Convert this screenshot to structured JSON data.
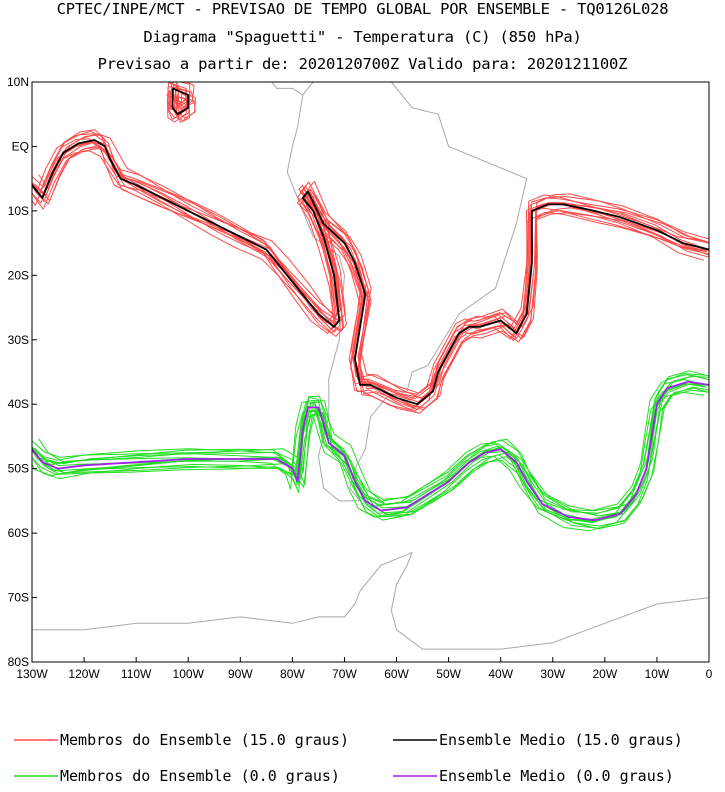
{
  "title_lines": [
    "CPTEC/INPE/MCT - PREVISAO DE TEMPO GLOBAL POR ENSEMBLE - TQ0126L028",
    "Diagrama \"Spaguetti\" - Temperatura (C) (850 hPa)",
    "Previsao a partir de: 2020120700Z  Valido para: 2020121100Z"
  ],
  "chart_data": {
    "type": "line",
    "title": "Diagrama \"Spaguetti\" - Temperatura (C) (850 hPa)",
    "subtitle": "Previsao a partir de: 2020120700Z  Valido para: 2020121100Z",
    "x_range": [
      -130,
      0
    ],
    "y_range": [
      -80,
      10
    ],
    "x_ticks": [
      {
        "v": -130,
        "label": "130W"
      },
      {
        "v": -120,
        "label": "120W"
      },
      {
        "v": -110,
        "label": "110W"
      },
      {
        "v": -100,
        "label": "100W"
      },
      {
        "v": -90,
        "label": "90W"
      },
      {
        "v": -80,
        "label": "80W"
      },
      {
        "v": -70,
        "label": "70W"
      },
      {
        "v": -60,
        "label": "60W"
      },
      {
        "v": -50,
        "label": "50W"
      },
      {
        "v": -40,
        "label": "40W"
      },
      {
        "v": -30,
        "label": "30W"
      },
      {
        "v": -20,
        "label": "20W"
      },
      {
        "v": -10,
        "label": "10W"
      },
      {
        "v": 0,
        "label": "0"
      }
    ],
    "y_ticks": [
      {
        "v": 10,
        "label": "10N"
      },
      {
        "v": 0,
        "label": "EQ"
      },
      {
        "v": -10,
        "label": "10S"
      },
      {
        "v": -20,
        "label": "20S"
      },
      {
        "v": -30,
        "label": "30S"
      },
      {
        "v": -40,
        "label": "40S"
      },
      {
        "v": -50,
        "label": "50S"
      },
      {
        "v": -60,
        "label": "60S"
      },
      {
        "v": -70,
        "label": "70S"
      },
      {
        "v": -80,
        "label": "80S"
      }
    ],
    "legend": [
      {
        "label": "Membros do Ensemble (15.0 graus)",
        "color": "#ff4a4a"
      },
      {
        "label": "Ensemble Medio (15.0 graus)",
        "color": "#000000"
      },
      {
        "label": "Membros do Ensemble (0.0 graus)",
        "color": "#22dd22"
      },
      {
        "label": "Ensemble Medio (0.0 graus)",
        "color": "#a020f0"
      }
    ],
    "members": 14,
    "series": [
      {
        "name": "Ensemble Medio (15.0 graus)",
        "color": "#000000",
        "segments": [
          [
            [
              -130,
              -6
            ],
            [
              -128,
              -8
            ],
            [
              -126,
              -4
            ],
            [
              -124,
              -1
            ],
            [
              -121,
              0.5
            ],
            [
              -118,
              1
            ],
            [
              -116,
              0
            ],
            [
              -115,
              -2
            ],
            [
              -113,
              -5
            ],
            [
              -110,
              -6
            ],
            [
              -105,
              -8
            ],
            [
              -100,
              -10
            ],
            [
              -95,
              -12
            ],
            [
              -90,
              -14
            ],
            [
              -85,
              -16
            ],
            [
              -82,
              -19
            ],
            [
              -78,
              -23
            ],
            [
              -75,
              -26
            ],
            [
              -72,
              -28
            ],
            [
              -71,
              -27
            ],
            [
              -72,
              -20
            ],
            [
              -74,
              -14
            ],
            [
              -76,
              -10
            ],
            [
              -78,
              -8
            ],
            [
              -77,
              -7
            ],
            [
              -74,
              -12
            ],
            [
              -70,
              -15
            ],
            [
              -68,
              -18
            ],
            [
              -66,
              -23
            ],
            [
              -67,
              -28
            ],
            [
              -68,
              -33
            ],
            [
              -67,
              -37
            ],
            [
              -65,
              -37
            ],
            [
              -60,
              -39
            ],
            [
              -56,
              -40
            ],
            [
              -53,
              -38
            ],
            [
              -52,
              -35
            ],
            [
              -50,
              -32
            ],
            [
              -48,
              -29
            ],
            [
              -46,
              -28
            ],
            [
              -44,
              -28
            ],
            [
              -40,
              -27
            ],
            [
              -37,
              -29
            ],
            [
              -35,
              -26
            ],
            [
              -34,
              -18
            ],
            [
              -34,
              -10
            ],
            [
              -31,
              -9
            ],
            [
              -28,
              -9
            ],
            [
              -22,
              -10
            ],
            [
              -17,
              -11
            ],
            [
              -10,
              -13
            ],
            [
              -5,
              -15
            ],
            [
              0,
              -16
            ]
          ],
          [
            [
              -103,
              9
            ],
            [
              -100,
              8
            ],
            [
              -100,
              6
            ],
            [
              -102,
              5
            ],
            [
              -103,
              6
            ],
            [
              -103,
              9
            ]
          ]
        ]
      },
      {
        "name": "Ensemble Medio (0.0 graus)",
        "color": "#a020f0",
        "segments": [
          [
            [
              -130,
              -47
            ],
            [
              -128,
              -49
            ],
            [
              -125,
              -50
            ],
            [
              -120,
              -49.5
            ],
            [
              -110,
              -49
            ],
            [
              -100,
              -48.5
            ],
            [
              -90,
              -48.5
            ],
            [
              -83,
              -48.5
            ],
            [
              -80,
              -50
            ],
            [
              -79,
              -52
            ],
            [
              -78,
              -44
            ],
            [
              -77,
              -40.5
            ],
            [
              -75,
              -40.5
            ],
            [
              -74,
              -43
            ],
            [
              -73,
              -46
            ],
            [
              -70,
              -48
            ],
            [
              -68,
              -52
            ],
            [
              -66,
              -55
            ],
            [
              -63,
              -56.5
            ],
            [
              -58,
              -56
            ],
            [
              -54,
              -54
            ],
            [
              -50,
              -52
            ],
            [
              -46,
              -49
            ],
            [
              -43,
              -47.5
            ],
            [
              -40,
              -47
            ],
            [
              -37,
              -49
            ],
            [
              -35,
              -52
            ],
            [
              -32,
              -55.5
            ],
            [
              -27,
              -57.5
            ],
            [
              -22,
              -58
            ],
            [
              -17,
              -57
            ],
            [
              -14,
              -54
            ],
            [
              -12,
              -50
            ],
            [
              -11,
              -45
            ],
            [
              -10,
              -40
            ],
            [
              -8,
              -37.5
            ],
            [
              -4,
              -36.5
            ],
            [
              0,
              -37
            ]
          ]
        ]
      }
    ]
  }
}
